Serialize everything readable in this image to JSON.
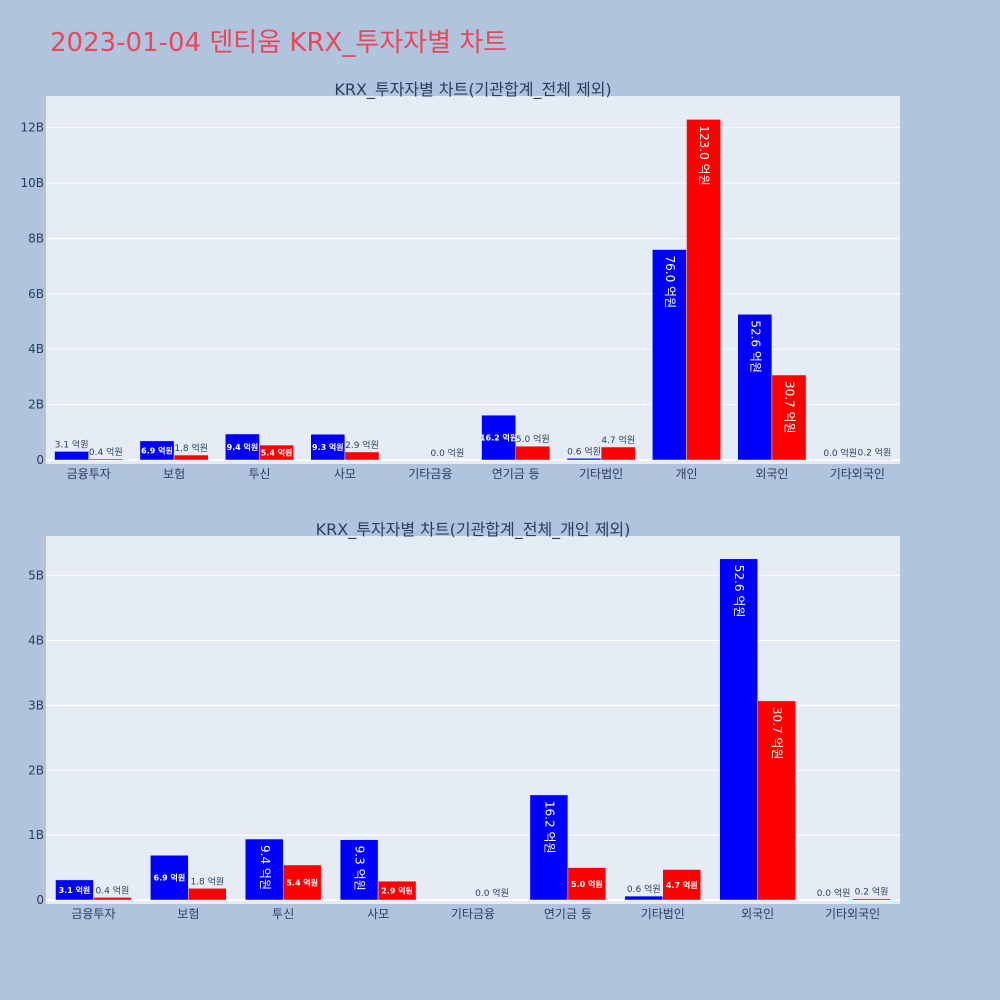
{
  "page": {
    "title": "2023-01-04 덴티움 KRX_투자자별 차트"
  },
  "colors": {
    "buy": "#0000ff",
    "sell": "#ff0000",
    "plot_bg": "#e5ecf6",
    "page_bg": "#b0c4de",
    "title": "#e8485a"
  },
  "chart_data": [
    {
      "type": "bar",
      "title": "KRX_투자자별 차트(기관합계_전체 제외)",
      "categories": [
        "금융투자",
        "보험",
        "투신",
        "사모",
        "기타금융",
        "연기금 등",
        "기타법인",
        "개인",
        "외국인",
        "기타외국인"
      ],
      "series": [
        {
          "values": [
            310000000,
            690000000,
            940000000,
            930000000,
            0,
            1620000000,
            60000000,
            7600000000,
            5260000000,
            0
          ],
          "labels": [
            "3.1 억원",
            "6.9 억원",
            "9.4 억원",
            "9.3 억원",
            "",
            "16.2 억원",
            "0.6 억원",
            "76.0 억원",
            "52.6 억원",
            "0.0 억원"
          ]
        },
        {
          "values": [
            40000000,
            180000000,
            540000000,
            290000000,
            0,
            500000000,
            470000000,
            12300000000,
            3070000000,
            20000000
          ],
          "labels": [
            "0.4 억원",
            "1.8 억원",
            "5.4 억원",
            "2.9 억원",
            "0.0 억원",
            "5.0 억원",
            "4.7 억원",
            "123.0 억원",
            "30.7 억원",
            "0.2 억원"
          ]
        }
      ],
      "ylim": [
        0,
        13000000000
      ],
      "yticks": [
        0,
        2000000000,
        4000000000,
        6000000000,
        8000000000,
        10000000000,
        12000000000
      ],
      "ytick_labels": [
        "0",
        "2B",
        "4B",
        "6B",
        "8B",
        "10B",
        "12B"
      ],
      "grid": true
    },
    {
      "type": "bar",
      "title": "KRX_투자자별 차트(기관합계_전체_개인 제외)",
      "categories": [
        "금융투자",
        "보험",
        "투신",
        "사모",
        "기타금융",
        "연기금 등",
        "기타법인",
        "외국인",
        "기타외국인"
      ],
      "series": [
        {
          "values": [
            310000000,
            690000000,
            940000000,
            930000000,
            0,
            1620000000,
            60000000,
            5260000000,
            0
          ],
          "labels": [
            "3.1 억원",
            "6.9 억원",
            "9.4 억원",
            "9.3 억원",
            "",
            "16.2 억원",
            "0.6 억원",
            "52.6 억원",
            "0.0 억원"
          ]
        },
        {
          "values": [
            40000000,
            180000000,
            540000000,
            290000000,
            0,
            500000000,
            470000000,
            3070000000,
            20000000
          ],
          "labels": [
            "0.4 억원",
            "1.8 억원",
            "5.4 억원",
            "2.9 억원",
            "0.0 억원",
            "5.0 억원",
            "4.7 억원",
            "30.7 억원",
            "0.2 억원"
          ]
        }
      ],
      "ylim": [
        0,
        5550000000
      ],
      "yticks": [
        0,
        1000000000,
        2000000000,
        3000000000,
        4000000000,
        5000000000
      ],
      "ytick_labels": [
        "0",
        "1B",
        "2B",
        "3B",
        "4B",
        "5B"
      ],
      "grid": true
    }
  ]
}
